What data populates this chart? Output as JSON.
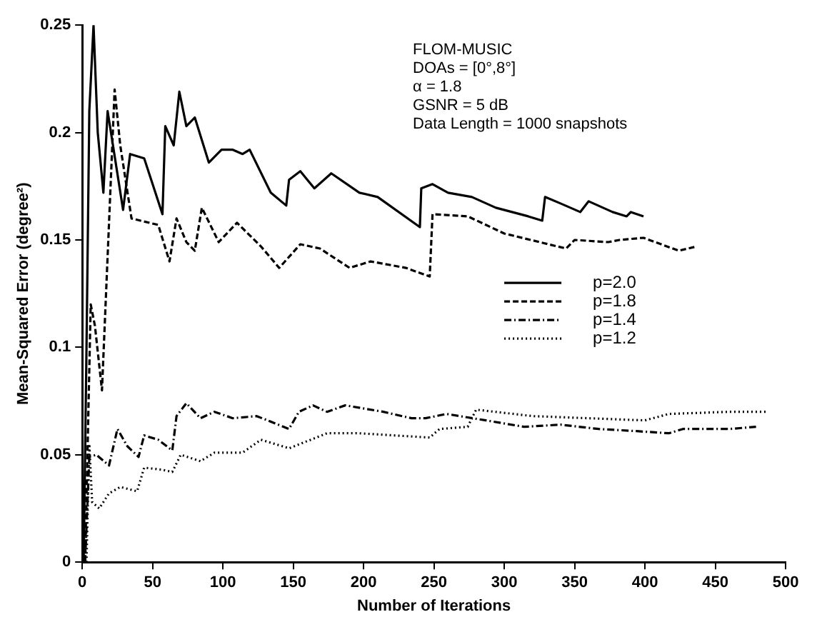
{
  "chart_data": {
    "type": "line",
    "xlabel": "Number of Iterations",
    "ylabel": "Mean-Squared Error (degree²)",
    "annotations": [
      "FLOM-MUSIC",
      "DOAs = [0°,8°]",
      "α = 1.8",
      "GSNR = 5 dB",
      "Data Length = 1000 snapshots"
    ],
    "xlim": [
      0,
      500
    ],
    "xticks": [
      0,
      50,
      100,
      150,
      200,
      250,
      300,
      350,
      400,
      450,
      500
    ],
    "ylim": [
      0,
      0.25
    ],
    "yticks": [
      0,
      0.05,
      0.1,
      0.15,
      0.2,
      0.25
    ],
    "grid": false,
    "legend": "right",
    "marker": "none",
    "series": [
      {
        "name": "p=2.0",
        "color": "#000000",
        "line_style": "solid",
        "x": [
          1,
          3,
          5,
          8,
          11,
          15,
          18,
          29,
          34,
          44,
          57,
          59,
          65,
          69,
          74,
          80,
          90,
          99,
          107,
          114,
          119,
          134,
          145,
          147,
          155,
          165,
          177,
          197,
          210,
          240,
          241,
          249,
          260,
          277,
          294,
          317,
          327,
          329,
          340,
          354,
          360,
          377,
          387,
          390,
          399
        ],
        "values": [
          0,
          0.1,
          0.21,
          0.25,
          0.2,
          0.172,
          0.21,
          0.164,
          0.19,
          0.188,
          0.162,
          0.203,
          0.194,
          0.219,
          0.203,
          0.207,
          0.186,
          0.192,
          0.192,
          0.19,
          0.192,
          0.172,
          0.166,
          0.178,
          0.182,
          0.174,
          0.181,
          0.172,
          0.17,
          0.156,
          0.174,
          0.176,
          0.172,
          0.17,
          0.165,
          0.161,
          0.159,
          0.17,
          0.167,
          0.163,
          0.168,
          0.163,
          0.161,
          0.163,
          0.161
        ]
      },
      {
        "name": "p=1.8",
        "color": "#000000",
        "line_style": "dashed",
        "x": [
          2,
          6,
          9,
          14,
          23,
          27,
          35,
          54,
          62,
          67,
          74,
          80,
          85,
          97,
          110,
          127,
          140,
          155,
          169,
          190,
          205,
          230,
          247,
          249,
          274,
          300,
          344,
          350,
          374,
          382,
          399,
          424,
          437
        ],
        "values": [
          0,
          0.12,
          0.11,
          0.08,
          0.22,
          0.194,
          0.16,
          0.157,
          0.14,
          0.16,
          0.149,
          0.145,
          0.165,
          0.149,
          0.158,
          0.147,
          0.137,
          0.148,
          0.146,
          0.137,
          0.14,
          0.137,
          0.133,
          0.162,
          0.161,
          0.153,
          0.146,
          0.15,
          0.149,
          0.15,
          0.151,
          0.145,
          0.147
        ]
      },
      {
        "name": "p=1.4",
        "color": "#000000",
        "line_style": "dashdot",
        "x": [
          2,
          5,
          10,
          19,
          25,
          32,
          40,
          44,
          54,
          64,
          67,
          74,
          84,
          94,
          107,
          124,
          147,
          154,
          164,
          174,
          187,
          214,
          234,
          244,
          259,
          287,
          314,
          340,
          367,
          394,
          417,
          427,
          460,
          479
        ],
        "values": [
          0,
          0.049,
          0.05,
          0.045,
          0.062,
          0.054,
          0.049,
          0.059,
          0.057,
          0.052,
          0.068,
          0.074,
          0.067,
          0.07,
          0.067,
          0.068,
          0.062,
          0.07,
          0.073,
          0.07,
          0.073,
          0.07,
          0.067,
          0.067,
          0.069,
          0.066,
          0.063,
          0.064,
          0.062,
          0.061,
          0.06,
          0.062,
          0.062,
          0.063
        ]
      },
      {
        "name": "p=1.2",
        "color": "#000000",
        "line_style": "dotted",
        "x": [
          3,
          5,
          7,
          12,
          19,
          27,
          39,
          44,
          57,
          64,
          70,
          84,
          94,
          114,
          127,
          147,
          174,
          197,
          247,
          254,
          274,
          280,
          320,
          360,
          400,
          417,
          460,
          487
        ],
        "values": [
          0,
          0.055,
          0.028,
          0.025,
          0.032,
          0.035,
          0.033,
          0.044,
          0.043,
          0.042,
          0.05,
          0.047,
          0.051,
          0.051,
          0.057,
          0.053,
          0.06,
          0.06,
          0.058,
          0.062,
          0.063,
          0.071,
          0.068,
          0.067,
          0.066,
          0.069,
          0.07,
          0.07
        ]
      }
    ]
  }
}
